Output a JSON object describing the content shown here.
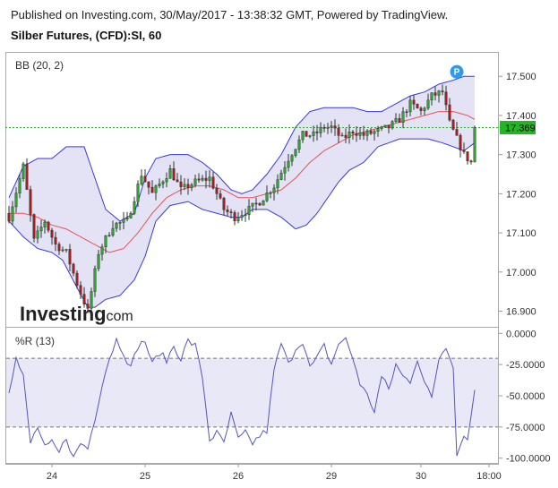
{
  "header": {
    "published": "Published on Investing.com, 30/May/2017 - 13:38:32 GMT, Powered by TradingView.",
    "title": "Silber Futures, (CFD):SI, 60"
  },
  "logo": {
    "word": "Investing",
    "suffix": ".com"
  },
  "marker": {
    "label": "P"
  },
  "colors": {
    "bull": "#27ad27",
    "bear": "#b41a1a",
    "band_line": "#3a3ad6",
    "band_fill": "#e3e3f5",
    "mid_line": "#e85353",
    "wr_line": "#5555bb",
    "wr_fill": "#e8e8f6",
    "price_line": "#23b523",
    "marker": "#2b9af3"
  },
  "chart_data": [
    {
      "type": "candlestick",
      "indicator_label": "BB (20, 2)",
      "ylim": [
        16.86,
        17.56
      ],
      "yticks": [
        "17.500",
        "17.400",
        "17.300",
        "17.200",
        "17.100",
        "17.000",
        "16.900"
      ],
      "current_price": "17.369",
      "current_value": 17.369,
      "x_labels": [
        {
          "label": "24",
          "index": 12
        },
        {
          "label": "25",
          "index": 38
        },
        {
          "label": "26",
          "index": 64
        },
        {
          "label": "29",
          "index": 90
        },
        {
          "label": "30",
          "index": 115
        },
        {
          "label": "18:00",
          "index": 134
        }
      ],
      "marker_index": 125,
      "bars": 131,
      "close_anchors": [
        [
          0,
          17.14
        ],
        [
          4,
          17.27
        ],
        [
          7,
          17.08
        ],
        [
          10,
          17.13
        ],
        [
          13,
          17.07
        ],
        [
          16,
          17.05
        ],
        [
          19,
          16.97
        ],
        [
          22,
          16.9
        ],
        [
          25,
          17.05
        ],
        [
          29,
          17.12
        ],
        [
          33,
          17.13
        ],
        [
          37,
          17.25
        ],
        [
          40,
          17.2
        ],
        [
          45,
          17.26
        ],
        [
          48,
          17.21
        ],
        [
          52,
          17.23
        ],
        [
          56,
          17.24
        ],
        [
          60,
          17.16
        ],
        [
          63,
          17.14
        ],
        [
          67,
          17.16
        ],
        [
          70,
          17.18
        ],
        [
          74,
          17.22
        ],
        [
          78,
          17.29
        ],
        [
          82,
          17.35
        ],
        [
          85,
          17.35
        ],
        [
          88,
          17.37
        ],
        [
          90,
          17.37
        ],
        [
          93,
          17.34
        ],
        [
          96,
          17.36
        ],
        [
          99,
          17.35
        ],
        [
          103,
          17.36
        ],
        [
          106,
          17.37
        ],
        [
          109,
          17.39
        ],
        [
          112,
          17.43
        ],
        [
          115,
          17.41
        ],
        [
          118,
          17.45
        ],
        [
          121,
          17.46
        ],
        [
          123,
          17.38
        ],
        [
          125,
          17.34
        ],
        [
          127,
          17.3
        ],
        [
          129,
          17.28
        ],
        [
          130,
          17.37
        ]
      ],
      "upper_anchors": [
        [
          0,
          17.19
        ],
        [
          4,
          17.27
        ],
        [
          8,
          17.29
        ],
        [
          12,
          17.29
        ],
        [
          16,
          17.32
        ],
        [
          21,
          17.32
        ],
        [
          24,
          17.24
        ],
        [
          27,
          17.16
        ],
        [
          31,
          17.13
        ],
        [
          35,
          17.15
        ],
        [
          38,
          17.24
        ],
        [
          41,
          17.29
        ],
        [
          45,
          17.3
        ],
        [
          50,
          17.3
        ],
        [
          54,
          17.28
        ],
        [
          58,
          17.25
        ],
        [
          62,
          17.21
        ],
        [
          65,
          17.2
        ],
        [
          68,
          17.21
        ],
        [
          72,
          17.25
        ],
        [
          76,
          17.3
        ],
        [
          80,
          17.37
        ],
        [
          84,
          17.41
        ],
        [
          88,
          17.42
        ],
        [
          92,
          17.42
        ],
        [
          96,
          17.42
        ],
        [
          100,
          17.41
        ],
        [
          104,
          17.41
        ],
        [
          108,
          17.43
        ],
        [
          112,
          17.45
        ],
        [
          116,
          17.46
        ],
        [
          120,
          17.48
        ],
        [
          124,
          17.49
        ],
        [
          127,
          17.5
        ],
        [
          130,
          17.5
        ]
      ],
      "lower_anchors": [
        [
          0,
          17.13
        ],
        [
          4,
          17.09
        ],
        [
          8,
          17.06
        ],
        [
          12,
          17.05
        ],
        [
          15,
          17.03
        ],
        [
          19,
          16.96
        ],
        [
          22,
          16.91
        ],
        [
          24,
          16.91
        ],
        [
          27,
          16.93
        ],
        [
          31,
          16.94
        ],
        [
          35,
          16.98
        ],
        [
          38,
          17.04
        ],
        [
          41,
          17.13
        ],
        [
          45,
          17.17
        ],
        [
          50,
          17.18
        ],
        [
          54,
          17.16
        ],
        [
          58,
          17.15
        ],
        [
          62,
          17.14
        ],
        [
          65,
          17.14
        ],
        [
          68,
          17.16
        ],
        [
          72,
          17.16
        ],
        [
          76,
          17.14
        ],
        [
          80,
          17.11
        ],
        [
          83,
          17.12
        ],
        [
          86,
          17.15
        ],
        [
          89,
          17.19
        ],
        [
          92,
          17.23
        ],
        [
          95,
          17.26
        ],
        [
          99,
          17.28
        ],
        [
          103,
          17.32
        ],
        [
          106,
          17.33
        ],
        [
          109,
          17.34
        ],
        [
          113,
          17.34
        ],
        [
          117,
          17.34
        ],
        [
          121,
          17.33
        ],
        [
          124,
          17.32
        ],
        [
          127,
          17.31
        ],
        [
          130,
          17.33
        ]
      ],
      "mid_anchors": [
        [
          0,
          17.15
        ],
        [
          4,
          17.15
        ],
        [
          8,
          17.14
        ],
        [
          12,
          17.12
        ],
        [
          16,
          17.11
        ],
        [
          20,
          17.09
        ],
        [
          24,
          17.07
        ],
        [
          28,
          17.05
        ],
        [
          32,
          17.06
        ],
        [
          36,
          17.1
        ],
        [
          40,
          17.15
        ],
        [
          44,
          17.19
        ],
        [
          48,
          17.21
        ],
        [
          52,
          17.22
        ],
        [
          56,
          17.22
        ],
        [
          60,
          17.21
        ],
        [
          64,
          17.19
        ],
        [
          68,
          17.19
        ],
        [
          72,
          17.2
        ],
        [
          76,
          17.21
        ],
        [
          80,
          17.24
        ],
        [
          84,
          17.28
        ],
        [
          88,
          17.31
        ],
        [
          92,
          17.33
        ],
        [
          96,
          17.35
        ],
        [
          100,
          17.36
        ],
        [
          104,
          17.37
        ],
        [
          108,
          17.38
        ],
        [
          112,
          17.39
        ],
        [
          116,
          17.4
        ],
        [
          120,
          17.41
        ],
        [
          124,
          17.41
        ],
        [
          128,
          17.4
        ],
        [
          130,
          17.39
        ]
      ]
    },
    {
      "type": "line",
      "indicator_label": "%R (13)",
      "ylim": [
        -104.5,
        4.5
      ],
      "yticks": [
        "0.0000",
        "-25.0000",
        "-50.0000",
        "-75.0000",
        "-100.0000"
      ],
      "band": [
        -75,
        -20
      ],
      "anchors": [
        [
          0,
          -45
        ],
        [
          2,
          -20
        ],
        [
          4,
          -35
        ],
        [
          6,
          -88
        ],
        [
          8,
          -75
        ],
        [
          10,
          -92
        ],
        [
          12,
          -88
        ],
        [
          14,
          -96
        ],
        [
          16,
          -83
        ],
        [
          18,
          -100
        ],
        [
          20,
          -88
        ],
        [
          22,
          -92
        ],
        [
          24,
          -68
        ],
        [
          26,
          -40
        ],
        [
          28,
          -20
        ],
        [
          30,
          -5
        ],
        [
          32,
          -15
        ],
        [
          34,
          -28
        ],
        [
          36,
          -10
        ],
        [
          38,
          -6
        ],
        [
          40,
          -25
        ],
        [
          42,
          -15
        ],
        [
          44,
          -22
        ],
        [
          46,
          -10
        ],
        [
          48,
          -20
        ],
        [
          50,
          -6
        ],
        [
          52,
          -10
        ],
        [
          54,
          -35
        ],
        [
          56,
          -85
        ],
        [
          58,
          -80
        ],
        [
          60,
          -88
        ],
        [
          62,
          -65
        ],
        [
          64,
          -85
        ],
        [
          66,
          -80
        ],
        [
          68,
          -88
        ],
        [
          70,
          -82
        ],
        [
          72,
          -78
        ],
        [
          74,
          -30
        ],
        [
          76,
          -8
        ],
        [
          78,
          -25
        ],
        [
          80,
          -12
        ],
        [
          82,
          -6
        ],
        [
          84,
          -28
        ],
        [
          86,
          -20
        ],
        [
          88,
          -10
        ],
        [
          90,
          -25
        ],
        [
          92,
          -8
        ],
        [
          94,
          -5
        ],
        [
          96,
          -20
        ],
        [
          98,
          -40
        ],
        [
          100,
          -50
        ],
        [
          102,
          -62
        ],
        [
          104,
          -35
        ],
        [
          106,
          -45
        ],
        [
          108,
          -25
        ],
        [
          110,
          -35
        ],
        [
          112,
          -38
        ],
        [
          114,
          -20
        ],
        [
          116,
          -40
        ],
        [
          118,
          -52
        ],
        [
          120,
          -20
        ],
        [
          122,
          -10
        ],
        [
          124,
          -25
        ],
        [
          125,
          -98
        ],
        [
          127,
          -80
        ],
        [
          128,
          -86
        ],
        [
          130,
          -45
        ]
      ]
    }
  ]
}
